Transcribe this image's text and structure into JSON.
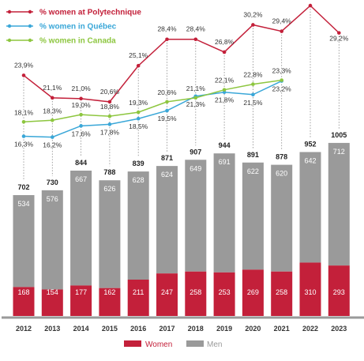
{
  "chart_data": {
    "type": "bar",
    "title": "",
    "xlabel": "",
    "ylabel": "",
    "categories": [
      "2012",
      "2013",
      "2014",
      "2015",
      "2016",
      "2017",
      "2018",
      "2019",
      "2020",
      "2021",
      "2022",
      "2023"
    ],
    "stacked_bars": {
      "series": [
        {
          "name": "Women",
          "color": "#c3203a",
          "values": [
            168,
            154,
            177,
            162,
            211,
            247,
            258,
            253,
            269,
            258,
            310,
            293
          ]
        },
        {
          "name": "Men",
          "color": "#9a9a9a",
          "values": [
            534,
            576,
            667,
            626,
            628,
            624,
            649,
            691,
            622,
            620,
            642,
            712
          ]
        }
      ],
      "totals": [
        702,
        730,
        844,
        788,
        839,
        871,
        907,
        944,
        891,
        878,
        952,
        1005
      ]
    },
    "lines": [
      {
        "name": "% women at Polytechnique",
        "color": "#c3203a",
        "values": [
          23.9,
          21.1,
          21.0,
          20.6,
          25.1,
          28.4,
          28.4,
          26.8,
          30.2,
          29.4,
          32.6,
          29.2
        ],
        "labels": [
          "23,9%",
          "21,1%",
          "21,0%",
          "20,6%",
          "25,1%",
          "28,4%",
          "28,4%",
          "26,8%",
          "30,2%",
          "29,4%",
          "32,6%",
          "29,2%"
        ]
      },
      {
        "name": "% women in Québec",
        "color": "#3aa7d8",
        "values": [
          16.3,
          16.2,
          17.6,
          17.8,
          18.5,
          19.5,
          21.3,
          21.8,
          21.5,
          23.2,
          null,
          null
        ],
        "labels": [
          "16,3%",
          "16,2%",
          "17,6%",
          "17,8%",
          "18,5%",
          "19,5%",
          "21,3%",
          "21,8%",
          "21,5%",
          "23,2%",
          "",
          ""
        ]
      },
      {
        "name": "% women in Canada",
        "color": "#8dc63f",
        "values": [
          18.1,
          18.3,
          19.0,
          18.8,
          19.3,
          20.6,
          21.1,
          22.1,
          22.8,
          23.3,
          null,
          null
        ],
        "labels": [
          "18,1%",
          "18,3%",
          "19,0%",
          "18,8%",
          "19,3%",
          "20,6%",
          "21,1%",
          "22,1%",
          "22,8%",
          "23,3%",
          "",
          ""
        ]
      }
    ],
    "legend": {
      "lines_placement": "top-left",
      "bars_placement": "bottom",
      "bar_entries": [
        "Women",
        "Men"
      ]
    },
    "grid": false
  }
}
